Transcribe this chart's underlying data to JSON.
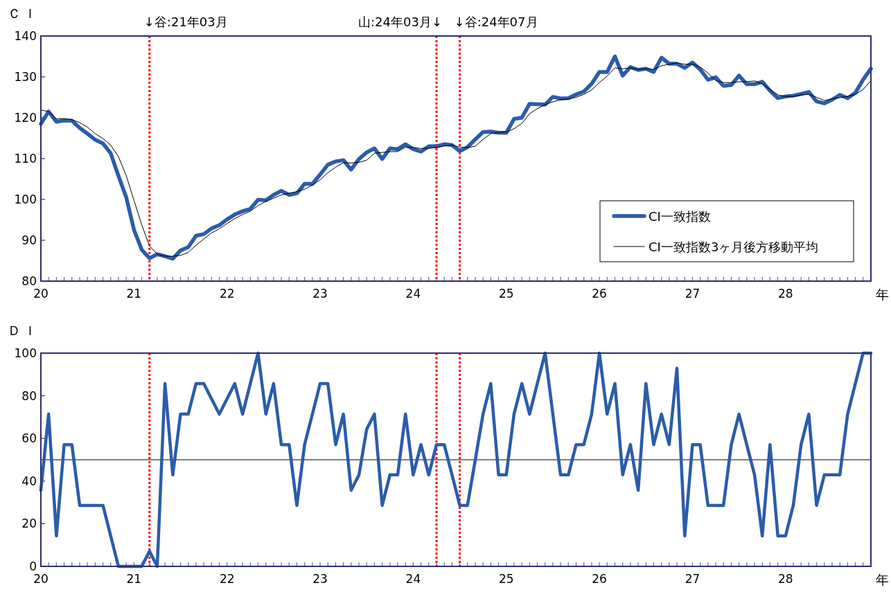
{
  "chart_data": [
    {
      "type": "line",
      "ylabel": "ＣＩ",
      "xlabel": "年",
      "legend": "bottom right",
      "x": [
        20,
        20.083,
        20.167,
        20.25,
        20.333,
        20.417,
        20.5,
        20.583,
        20.667,
        20.75,
        20.833,
        20.917,
        21,
        21.083,
        21.167,
        21.25,
        21.333,
        21.417,
        21.5,
        21.583,
        21.667,
        21.75,
        21.833,
        21.917,
        22,
        22.083,
        22.167,
        22.25,
        22.333,
        22.417,
        22.5,
        22.583,
        22.667,
        22.75,
        22.833,
        22.917,
        23,
        23.083,
        23.167,
        23.25,
        23.333,
        23.417,
        23.5,
        23.583,
        23.667,
        23.75,
        23.833,
        23.917,
        24,
        24.083,
        24.167,
        24.25,
        24.333,
        24.417,
        24.5,
        24.583,
        24.667,
        24.75,
        24.833,
        24.917,
        25,
        25.083,
        25.167,
        25.25,
        25.333,
        25.417,
        25.5,
        25.583,
        25.667,
        25.75,
        25.833,
        25.917,
        26,
        26.083,
        26.167,
        26.25,
        26.333,
        26.417,
        26.5,
        26.583,
        26.667,
        26.75,
        26.833,
        26.917,
        27,
        27.083,
        27.167,
        27.25,
        27.333,
        27.417,
        27.5,
        27.583,
        27.667,
        27.75,
        27.833,
        27.917,
        28,
        28.083,
        28.167,
        28.25,
        28.333,
        28.417,
        28.5,
        28.583,
        28.667,
        28.75,
        28.833,
        28.917
      ],
      "series": [
        {
          "name": "CI一致指数",
          "color": "#2a5caa",
          "values": [
            118.5,
            121.5,
            119.0,
            119.3,
            119.3,
            117.5,
            116.1,
            114.6,
            113.7,
            111.3,
            105.8,
            100.5,
            92.6,
            87.7,
            85.6,
            86.6,
            86.1,
            85.5,
            87.5,
            88.3,
            91.1,
            91.5,
            92.9,
            93.7,
            95.1,
            96.3,
            97.1,
            97.7,
            99.9,
            99.8,
            101.1,
            102.1,
            101.1,
            101.5,
            103.8,
            103.8,
            106.1,
            108.5,
            109.3,
            109.6,
            107.3,
            109.9,
            111.5,
            112.5,
            109.9,
            112.5,
            112.3,
            113.5,
            112.3,
            111.7,
            113.0,
            113.0,
            113.5,
            113.3,
            111.8,
            112.8,
            114.7,
            116.5,
            116.6,
            116.3,
            116.3,
            119.7,
            120.0,
            123.4,
            123.3,
            123.2,
            125.1,
            124.7,
            124.8,
            125.7,
            126.4,
            128.3,
            131.2,
            131.2,
            135.0,
            130.3,
            132.4,
            131.7,
            132.0,
            131.2,
            134.7,
            133.2,
            133.2,
            132.2,
            133.5,
            131.8,
            129.3,
            129.9,
            127.8,
            128.0,
            130.3,
            128.2,
            128.2,
            128.8,
            126.6,
            124.8,
            125.2,
            125.4,
            125.8,
            126.3,
            124.0,
            123.5,
            124.4,
            125.6,
            124.8,
            126.1,
            129.3,
            132.0
          ]
        },
        {
          "name": "CI一致指数3ヶ月後方移動平均",
          "color": "#000000",
          "values": [
            121.9,
            121.5,
            119.7,
            119.8,
            119.5,
            118.8,
            117.7,
            116.1,
            114.9,
            113.3,
            110.5,
            105.8,
            99.8,
            93.8,
            88.6,
            86.6,
            86.1,
            86.1,
            86.3,
            87.0,
            88.8,
            90.3,
            91.8,
            92.8,
            94.1,
            95.3,
            96.3,
            97.1,
            98.5,
            99.5,
            100.3,
            101.1,
            101.5,
            101.9,
            102.5,
            103.5,
            104.8,
            106.5,
            107.9,
            109.0,
            108.9,
            109.1,
            109.6,
            111.3,
            111.5,
            111.7,
            111.7,
            112.8,
            112.7,
            112.5,
            112.5,
            112.7,
            113.1,
            113.3,
            112.8,
            112.7,
            113.0,
            114.7,
            116.1,
            116.4,
            116.5,
            117.3,
            118.6,
            121.0,
            122.2,
            123.2,
            123.9,
            124.4,
            124.6,
            125.0,
            125.7,
            126.8,
            128.6,
            130.2,
            132.2,
            132.0,
            132.2,
            131.8,
            132.0,
            131.8,
            132.7,
            133.1,
            133.4,
            133.1,
            133.1,
            132.4,
            130.9,
            129.1,
            128.6,
            128.6,
            128.8,
            128.8,
            129.0,
            128.3,
            126.9,
            125.6,
            125.2,
            125.2,
            125.6,
            125.7,
            125.0,
            124.2,
            124.6,
            124.9,
            125.2,
            125.7,
            126.9,
            129.1
          ]
        }
      ],
      "xlim": [
        20,
        28.917
      ],
      "ylim": [
        80,
        140
      ],
      "xticks": [
        20,
        21,
        22,
        23,
        24,
        25,
        26,
        27,
        28
      ],
      "yticks": [
        80,
        90,
        100,
        110,
        120,
        130,
        140
      ],
      "ref_lines": [
        {
          "axis": "x",
          "value": 21.167,
          "label": "↓谷:21年03月",
          "color": "#ff0000",
          "line_style": "dotted"
        },
        {
          "axis": "x",
          "value": 24.25,
          "label": "山:24年03月↓",
          "color": "#ff0000",
          "line_style": "dotted"
        },
        {
          "axis": "x",
          "value": 24.5,
          "label": "↓谷:24年07月",
          "color": "#ff0000",
          "line_style": "dotted"
        }
      ]
    },
    {
      "type": "line",
      "ylabel": "ＤＩ",
      "xlabel": "年",
      "x": [
        20,
        20.083,
        20.167,
        20.25,
        20.333,
        20.417,
        20.5,
        20.583,
        20.667,
        20.75,
        20.833,
        20.917,
        21,
        21.083,
        21.167,
        21.25,
        21.333,
        21.417,
        21.5,
        21.583,
        21.667,
        21.75,
        21.833,
        21.917,
        22,
        22.083,
        22.167,
        22.25,
        22.333,
        22.417,
        22.5,
        22.583,
        22.667,
        22.75,
        22.833,
        22.917,
        23,
        23.083,
        23.167,
        23.25,
        23.333,
        23.417,
        23.5,
        23.583,
        23.667,
        23.75,
        23.833,
        23.917,
        24,
        24.083,
        24.167,
        24.25,
        24.333,
        24.417,
        24.5,
        24.583,
        24.667,
        24.75,
        24.833,
        24.917,
        25,
        25.083,
        25.167,
        25.25,
        25.333,
        25.417,
        25.5,
        25.583,
        25.667,
        25.75,
        25.833,
        25.917,
        26,
        26.083,
        26.167,
        26.25,
        26.333,
        26.417,
        26.5,
        26.583,
        26.667,
        26.75,
        26.833,
        26.917,
        27,
        27.083,
        27.167,
        27.25,
        27.333,
        27.417,
        27.5,
        27.583,
        27.667,
        27.75,
        27.833,
        27.917,
        28,
        28.083,
        28.167,
        28.25,
        28.333,
        28.417,
        28.5,
        28.583,
        28.667,
        28.75,
        28.833,
        28.917
      ],
      "series": [
        {
          "color": "#2a5caa",
          "values": [
            35.7,
            71.4,
            14.3,
            57.1,
            57.1,
            28.6,
            28.6,
            28.6,
            28.6,
            14.3,
            0,
            0,
            0,
            0,
            7.1,
            0,
            85.7,
            42.9,
            71.4,
            71.4,
            85.7,
            85.7,
            78.6,
            71.4,
            78.6,
            85.7,
            71.4,
            85.7,
            100,
            71.4,
            85.7,
            57.1,
            57.1,
            28.6,
            57.1,
            71.4,
            85.7,
            85.7,
            57.1,
            71.4,
            35.7,
            42.9,
            64.3,
            71.4,
            28.6,
            42.9,
            42.9,
            71.4,
            42.9,
            57.1,
            42.9,
            57.1,
            57.1,
            42.9,
            28.6,
            28.6,
            50,
            71.4,
            85.7,
            42.9,
            42.9,
            71.4,
            85.7,
            71.4,
            85.7,
            100,
            71.4,
            42.9,
            42.9,
            57.1,
            57.1,
            71.4,
            100,
            71.4,
            85.7,
            42.9,
            57.1,
            35.7,
            85.7,
            57.1,
            71.4,
            57.1,
            92.9,
            14.3,
            57.1,
            57.1,
            28.6,
            28.6,
            28.6,
            57.1,
            71.4,
            57.1,
            42.9,
            14.3,
            57.1,
            14.3,
            14.3,
            28.6,
            57.1,
            71.4,
            28.6,
            42.9,
            42.9,
            42.9,
            71.4,
            85.7,
            100,
            100
          ]
        }
      ],
      "xlim": [
        20,
        28.917
      ],
      "ylim": [
        0,
        100
      ],
      "xticks": [
        20,
        21,
        22,
        23,
        24,
        25,
        26,
        27,
        28
      ],
      "yticks": [
        0,
        20,
        40,
        60,
        80,
        100
      ],
      "ref_lines": [
        {
          "axis": "x",
          "value": 21.167,
          "color": "#ff0000",
          "line_style": "dotted"
        },
        {
          "axis": "x",
          "value": 24.25,
          "color": "#ff0000",
          "line_style": "dotted"
        },
        {
          "axis": "x",
          "value": 24.5,
          "color": "#ff0000",
          "line_style": "dotted"
        },
        {
          "axis": "y",
          "value": 50,
          "color": "#000000",
          "line_style": "solid"
        }
      ]
    }
  ]
}
